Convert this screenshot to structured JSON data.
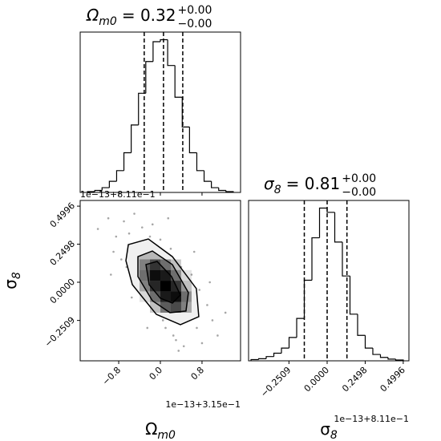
{
  "chart_data": [
    {
      "type": "histogram",
      "title": {
        "symbol": "Ω",
        "subscript": "m0",
        "value": "= 0.32",
        "upper": "+0.00",
        "lower": "−0.00"
      },
      "bins": [
        -1.4,
        -1.26,
        -1.12,
        -0.98,
        -0.84,
        -0.7,
        -0.56,
        -0.42,
        -0.28,
        -0.14,
        0,
        0.14,
        0.28,
        0.42,
        0.56,
        0.7,
        0.84,
        0.98,
        1.12,
        1.26,
        1.4
      ],
      "counts": [
        2,
        5,
        12,
        28,
        55,
        100,
        170,
        250,
        330,
        380,
        385,
        320,
        240,
        165,
        100,
        55,
        28,
        12,
        5,
        2
      ],
      "quantiles": [
        -0.31,
        0.06,
        0.43
      ],
      "xlim": [
        -1.54,
        1.54
      ],
      "xticks": [
        -0.8,
        0,
        0.8
      ],
      "color": "#000000"
    },
    {
      "type": "scatter2d",
      "xlabel": {
        "symbol": "Ω",
        "subscript": "m0"
      },
      "ylabel": {
        "symbol": "σ",
        "subscript": "8"
      },
      "x_offset": "1e−13+3.15e−1",
      "y_offset": "1e−13+8.11e−1",
      "xlim": [
        -1.54,
        1.54
      ],
      "ylim": [
        -0.516,
        0.537
      ],
      "xticks": [
        {
          "value": -0.8,
          "label": "−0.8"
        },
        {
          "value": 0,
          "label": "0.0"
        },
        {
          "value": 0.8,
          "label": "0.8"
        }
      ],
      "yticks": [
        {
          "value": -0.2509,
          "label": "−0.2509"
        },
        {
          "value": 0,
          "label": "0.0000"
        },
        {
          "value": 0.2498,
          "label": "0.2498"
        },
        {
          "value": 0.4996,
          "label": "0.4996"
        }
      ],
      "points": {
        "x": [
          -1.2,
          -1.0,
          -0.9,
          -0.85,
          -0.7,
          -0.65,
          -0.6,
          -0.5,
          -0.45,
          -0.4,
          -0.35,
          -0.3,
          -0.2,
          -0.15,
          -0.1,
          0.0,
          0.05,
          0.1,
          0.2,
          0.25,
          0.3,
          0.4,
          0.45,
          0.5,
          0.6,
          0.7,
          0.75,
          0.8,
          0.9,
          1.0,
          1.1,
          1.25,
          -0.75,
          -0.55,
          0.35,
          0.65,
          0.95,
          -0.95,
          0.15,
          -0.25
        ],
        "y": [
          0.35,
          0.42,
          0.2,
          0.3,
          0.4,
          0.1,
          0.32,
          0.45,
          0.05,
          0.25,
          0.36,
          -0.05,
          0.3,
          0.38,
          -0.15,
          0.28,
          -0.25,
          -0.3,
          0.22,
          -0.35,
          -0.38,
          0.1,
          -0.42,
          -0.2,
          0.05,
          -0.3,
          -0.05,
          -0.4,
          -0.15,
          -0.25,
          -0.35,
          -0.2,
          0.15,
          -0.1,
          -0.45,
          0.2,
          0.0,
          0.05,
          0.42,
          -0.3
        ]
      },
      "contours": [
        {
          "x": [
            -0.615,
            -0.231,
            0.231,
            0.692,
            0.738,
            0.385,
            -0.077,
            -0.538,
            -0.662
          ],
          "y": [
            0.247,
            0.284,
            0.168,
            -0.042,
            -0.226,
            -0.279,
            -0.211,
            -0.016,
            0.142
          ]
        },
        {
          "x": [
            -0.431,
            -0.154,
            0.231,
            0.538,
            0.492,
            0.185,
            -0.154,
            -0.431
          ],
          "y": [
            0.168,
            0.205,
            0.116,
            -0.068,
            -0.189,
            -0.2,
            -0.121,
            0.037
          ]
        },
        {
          "x": [
            -0.277,
            -0.062,
            0.215,
            0.385,
            0.231,
            0,
            -0.215
          ],
          "y": [
            0.116,
            0.137,
            0.037,
            -0.084,
            -0.137,
            -0.105,
            -0.016
          ]
        }
      ],
      "contour_colors": [
        "#f0f0f0",
        "#b8b8b8",
        "#808080"
      ],
      "density": {
        "x_edges": [
          -0.4,
          -0.2,
          0,
          0.2,
          0.4,
          0.6
        ],
        "y_edges": [
          -0.2,
          -0.13,
          -0.06,
          0.01,
          0.08,
          0.15
        ],
        "counts": [
          [
            0,
            0.2,
            0.5,
            0.6,
            0.3
          ],
          [
            0.1,
            0.4,
            0.8,
            0.9,
            0.4
          ],
          [
            0.3,
            0.7,
            1.0,
            0.7,
            0.2
          ],
          [
            0.4,
            0.9,
            0.8,
            0.4,
            0.1
          ],
          [
            0.3,
            0.6,
            0.4,
            0.2,
            0
          ]
        ]
      },
      "color": "#000000"
    },
    {
      "type": "histogram",
      "title": {
        "symbol": "σ",
        "subscript": "8",
        "value": "= 0.81",
        "upper": "+0.00",
        "lower": "−0.00"
      },
      "xlabel": {
        "symbol": "σ",
        "subscript": "8"
      },
      "x_offset": "1e−13+8.11e−1",
      "bins": [
        -0.5,
        -0.45,
        -0.4,
        -0.35,
        -0.3,
        -0.25,
        -0.2,
        -0.15,
        -0.1,
        -0.05,
        0,
        0.05,
        0.1,
        0.15,
        0.2,
        0.25,
        0.3,
        0.35,
        0.4,
        0.45,
        0.5
      ],
      "counts": [
        3,
        5,
        10,
        18,
        30,
        55,
        100,
        190,
        290,
        360,
        350,
        280,
        200,
        110,
        60,
        30,
        15,
        8,
        4,
        2
      ],
      "quantiles": [
        -0.15,
        0,
        0.13
      ],
      "xlim": [
        -0.516,
        0.537
      ],
      "xticks": [
        {
          "value": -0.2509,
          "label": "−0.2509"
        },
        {
          "value": 0,
          "label": "0.0000"
        },
        {
          "value": 0.2498,
          "label": "0.2498"
        },
        {
          "value": 0.4996,
          "label": "0.4996"
        }
      ],
      "color": "#000000"
    }
  ]
}
